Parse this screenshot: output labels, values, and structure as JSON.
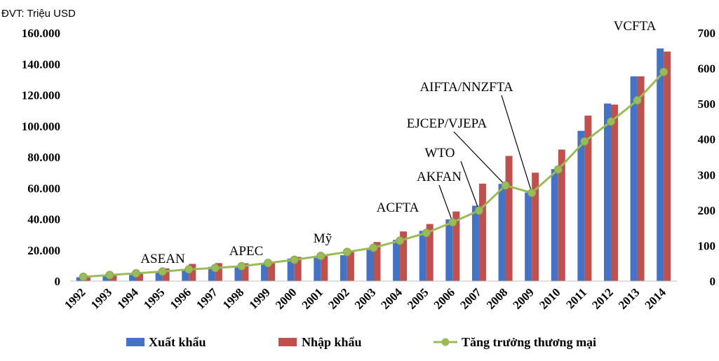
{
  "chart_data": {
    "type": "bar",
    "unit_label": "ĐVT: Triệu USD",
    "categories": [
      "1992",
      "1993",
      "1994",
      "1995",
      "1996",
      "1997",
      "1998",
      "1999",
      "2000",
      "2001",
      "2002",
      "2003",
      "2004",
      "2005",
      "2006",
      "2007",
      "2008",
      "2009",
      "2010",
      "2011",
      "2012",
      "2013",
      "2014"
    ],
    "series": [
      {
        "name": "Xuất khẩu",
        "type": "bar",
        "axis": "left",
        "color": "#4472C4",
        "values": [
          2500,
          3000,
          4000,
          5500,
          7300,
          9200,
          9400,
          11500,
          14500,
          15000,
          16700,
          20200,
          26500,
          32400,
          39800,
          48600,
          62700,
          57100,
          72200,
          96900,
          114500,
          132000,
          150000
        ]
      },
      {
        "name": "Nhập khẩu",
        "type": "bar",
        "axis": "left",
        "color": "#C0504D",
        "values": [
          2500,
          4500,
          5800,
          8200,
          11100,
          11600,
          11500,
          11700,
          15600,
          16200,
          19700,
          25200,
          32000,
          36800,
          44900,
          62800,
          80700,
          69900,
          84800,
          106700,
          113800,
          132000,
          148000
        ]
      },
      {
        "name": "Tăng trưởng thương mại",
        "type": "line",
        "axis": "right",
        "color": "#9BBB59",
        "values": [
          12,
          17,
          22,
          27,
          33,
          37,
          42,
          51,
          60,
          71,
          82,
          94,
          114,
          136,
          166,
          199,
          270,
          249,
          315,
          394,
          450,
          510,
          590
        ]
      }
    ],
    "y_left": {
      "min": 0,
      "max": 160000,
      "ticks": [
        "0",
        "20.000",
        "40.000",
        "60.000",
        "80.000",
        "100.000",
        "120.000",
        "140.000",
        "160.000"
      ]
    },
    "y_right": {
      "min": 0,
      "max": 700,
      "ticks": [
        "0",
        "100",
        "200",
        "300",
        "400",
        "500",
        "600",
        "700"
      ]
    },
    "annotations": [
      {
        "text": "ASEAN",
        "year": "1995"
      },
      {
        "text": "APEC",
        "year": "1998"
      },
      {
        "text": "Mỹ",
        "year": "2001"
      },
      {
        "text": "ACFTA",
        "year": "2004"
      },
      {
        "text": "AKFAN",
        "year": "2006"
      },
      {
        "text": "WTO",
        "year": "2007"
      },
      {
        "text": "EJCEP/VJEPA",
        "year": "2008"
      },
      {
        "text": "AIFTA/NNZFTA",
        "year": "2009"
      },
      {
        "text": "VCFTA",
        "year": "2014"
      }
    ],
    "legend_position": "bottom",
    "grid": false
  }
}
